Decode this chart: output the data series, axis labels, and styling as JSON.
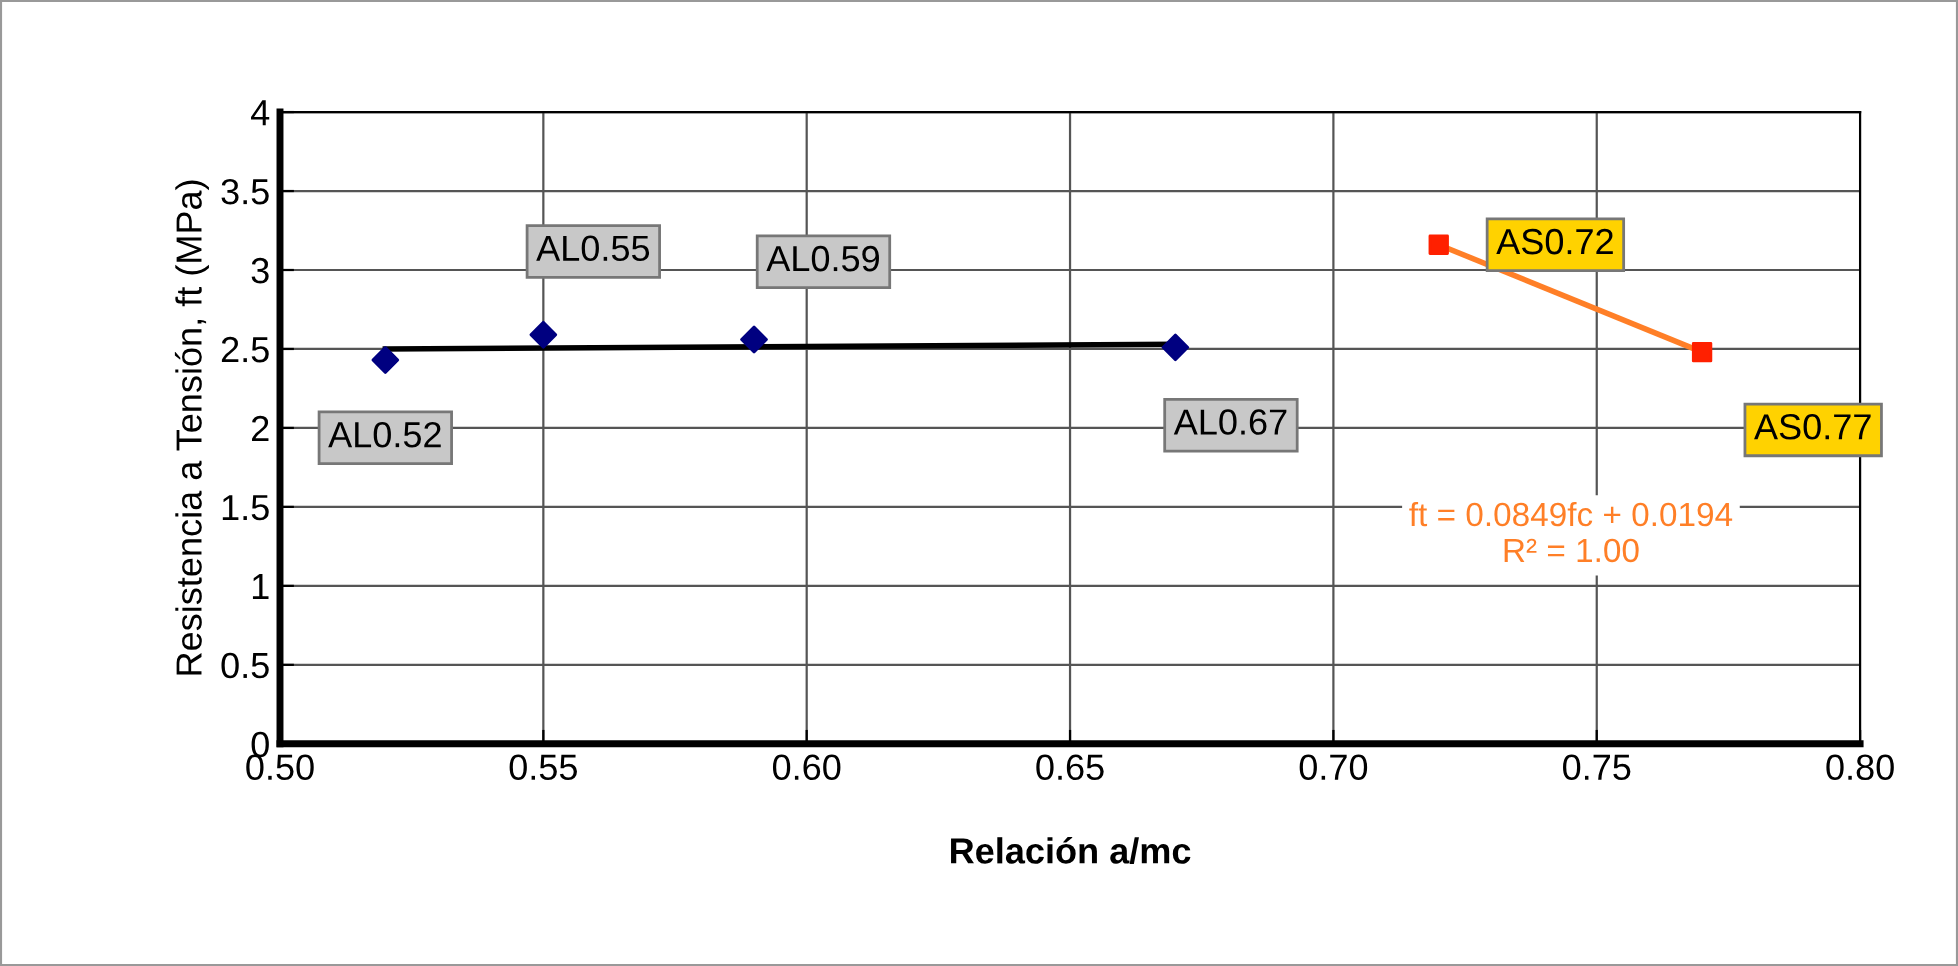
{
  "chart_data": {
    "type": "scatter",
    "xlabel": "Relación a/mc",
    "ylabel": "Resistencia a Tensión, ft (MPa)",
    "series": [
      {
        "color": "#000080",
        "marker": "diamond",
        "x": [
          0.52,
          0.55,
          0.59,
          0.67
        ],
        "values": [
          2.43,
          2.59,
          2.56,
          2.51
        ]
      },
      {
        "type": "line",
        "color": "#000000",
        "marker": "none",
        "x": [
          0.52,
          0.67
        ],
        "values": [
          2.5,
          2.53
        ]
      },
      {
        "color": "#ff2000",
        "marker": "square",
        "x": [
          0.72,
          0.77
        ],
        "values": [
          3.16,
          2.48
        ]
      },
      {
        "type": "line",
        "color": "#ff7f27",
        "marker": "none",
        "x": [
          0.72,
          0.77
        ],
        "values": [
          3.16,
          2.48
        ]
      }
    ],
    "annotations": [
      {
        "text": "AL0.52",
        "x": 0.52,
        "y": 2.43
      },
      {
        "text": "AL0.55",
        "x": 0.55,
        "y": 2.59
      },
      {
        "text": "AL0.59",
        "x": 0.59,
        "y": 2.56
      },
      {
        "text": "AL0.67",
        "x": 0.67,
        "y": 2.51
      },
      {
        "text": "AS0.72",
        "x": 0.72,
        "y": 3.16
      },
      {
        "text": "AS0.77",
        "x": 0.77,
        "y": 2.48
      },
      "ft = 0.0849fc + 0.0194\nR² = 1.00"
    ],
    "xlim": [
      0.5,
      0.8
    ],
    "ylim": [
      0,
      4
    ],
    "xticks": [
      {
        "value": 0.5,
        "label": "0.50"
      },
      {
        "value": 0.55,
        "label": "0.55"
      },
      {
        "value": 0.6,
        "label": "0.60"
      },
      {
        "value": 0.65,
        "label": "0.65"
      },
      {
        "value": 0.7,
        "label": "0.70"
      },
      {
        "value": 0.75,
        "label": "0.75"
      },
      {
        "value": 0.8,
        "label": "0.80"
      }
    ],
    "yticks": [
      0,
      0.5,
      1,
      1.5,
      2,
      2.5,
      3,
      3.5,
      4
    ],
    "grid": true
  }
}
